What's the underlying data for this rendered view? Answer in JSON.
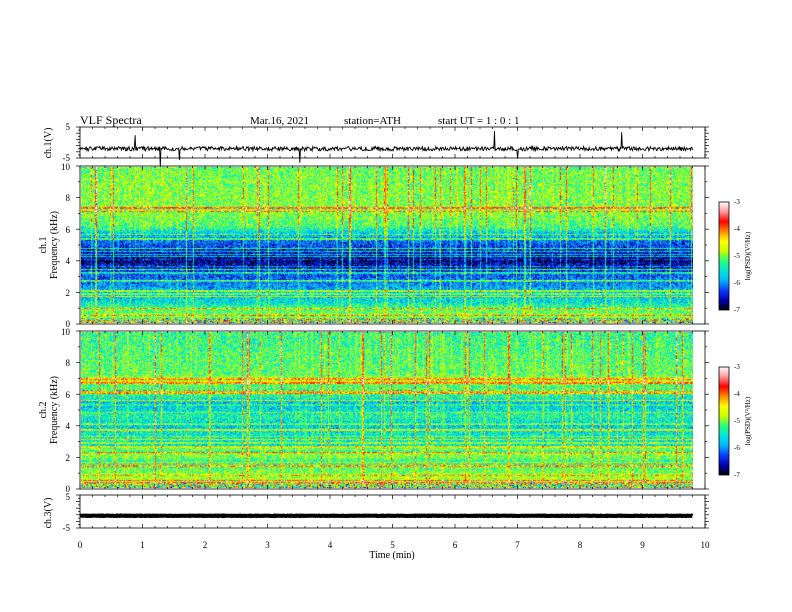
{
  "header": {
    "title": "VLF  Spectra",
    "date": "Mar.16, 2021",
    "station": "station=ATH",
    "start_ut": "start  UT  =   1  : 0   : 1"
  },
  "x_axis": {
    "label": "Time  (min)",
    "ticks": [
      "0",
      "1",
      "2",
      "3",
      "4",
      "5",
      "6",
      "7",
      "8",
      "9",
      "10"
    ]
  },
  "colorbar": {
    "label": "log(PSD)(V²/Hz)",
    "ticks": [
      "-3",
      "-4",
      "-5",
      "-6",
      "-7"
    ]
  },
  "panels": {
    "ch1v": {
      "label": "ch.1(V)",
      "ticks": [
        "5",
        "-5"
      ]
    },
    "ch1": {
      "label_ch": "ch.1",
      "label_freq": "Frequency  (kHz)",
      "ticks": [
        "10",
        "8",
        "6",
        "4",
        "2",
        "0"
      ]
    },
    "ch2": {
      "label_ch": "ch.2",
      "label_freq": "Frequency  (kHz)",
      "ticks": [
        "10",
        "8",
        "6",
        "4",
        "2",
        "0"
      ]
    },
    "ch3v": {
      "label": "ch.3(V)",
      "ticks": [
        "5",
        "-5"
      ]
    }
  },
  "colors": {
    "colormap": [
      "#000000",
      "#0000b4",
      "#0a3cff",
      "#00b4ff",
      "#00e6dc",
      "#28ff78",
      "#c8ff00",
      "#ffff00",
      "#ff8c00",
      "#ff0000",
      "#ff9696",
      "#ffffff"
    ]
  },
  "chart_data": {
    "type": "heatmap",
    "x_unit": "min",
    "xlim": [
      0,
      10
    ],
    "data_xlim": [
      0,
      9.8
    ],
    "time_series": [
      {
        "channel": "ch.1",
        "unit": "V",
        "ylim": [
          -5,
          5
        ],
        "baseline": -2.0
      },
      {
        "channel": "ch.3",
        "unit": "V",
        "ylim": [
          -5,
          5
        ],
        "baseline": -1.3
      }
    ],
    "spectrograms": [
      {
        "channel": "ch.1",
        "ylim_khz": [
          0,
          10
        ],
        "clim": [
          -7,
          -3
        ],
        "band_profile": [
          {
            "f": 0.0,
            "v": -5.1
          },
          {
            "f": 0.4,
            "v": -5.0
          },
          {
            "f": 0.9,
            "v": -5.2
          },
          {
            "f": 1.3,
            "v": -5.6
          },
          {
            "f": 2.0,
            "v": -5.8
          },
          {
            "f": 2.6,
            "v": -6.1
          },
          {
            "f": 3.2,
            "v": -6.3
          },
          {
            "f": 4.0,
            "v": -6.8
          },
          {
            "f": 4.8,
            "v": -6.4
          },
          {
            "f": 5.5,
            "v": -6.0
          },
          {
            "f": 6.2,
            "v": -5.2
          },
          {
            "f": 7.0,
            "v": -5.0
          },
          {
            "f": 8.5,
            "v": -5.0
          },
          {
            "f": 10.0,
            "v": -5.1
          }
        ]
      },
      {
        "channel": "ch.2",
        "ylim_khz": [
          0,
          10
        ],
        "clim": [
          -7,
          -3
        ],
        "band_profile": [
          {
            "f": 0.0,
            "v": -5.0
          },
          {
            "f": 0.5,
            "v": -4.8
          },
          {
            "f": 1.0,
            "v": -5.0
          },
          {
            "f": 1.6,
            "v": -5.4
          },
          {
            "f": 2.1,
            "v": -4.9
          },
          {
            "f": 2.6,
            "v": -5.6
          },
          {
            "f": 3.3,
            "v": -5.5
          },
          {
            "f": 4.0,
            "v": -5.7
          },
          {
            "f": 4.6,
            "v": -5.4
          },
          {
            "f": 5.4,
            "v": -5.8
          },
          {
            "f": 6.0,
            "v": -5.3
          },
          {
            "f": 7.0,
            "v": -5.1
          },
          {
            "f": 8.5,
            "v": -5.2
          },
          {
            "f": 10.0,
            "v": -5.3
          }
        ]
      }
    ]
  }
}
